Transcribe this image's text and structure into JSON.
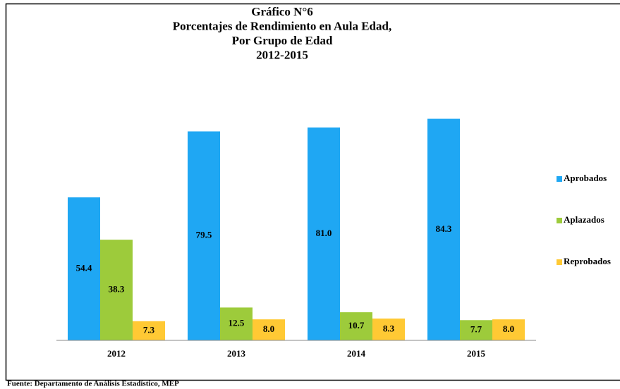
{
  "chart_data": {
    "type": "bar",
    "title": [
      "Gráfico N°6",
      "Porcentajes de Rendimiento en Aula Edad,",
      "Por Grupo de Edad",
      "2012-2015"
    ],
    "categories": [
      "2012",
      "2013",
      "2014",
      "2015"
    ],
    "series": [
      {
        "name": "Aprobados",
        "color": "#1fa7f3",
        "values": [
          54.4,
          79.5,
          81.0,
          84.3
        ],
        "value_labels": [
          "54.4",
          "79.5",
          "81.0",
          "84.3"
        ]
      },
      {
        "name": "Aplazados",
        "color": "#9dcb3b",
        "values": [
          38.3,
          12.5,
          10.7,
          7.7
        ],
        "value_labels": [
          "38.3",
          "12.5",
          "10.7",
          "7.7"
        ]
      },
      {
        "name": "Reprobados",
        "color": "#ffc934",
        "values": [
          7.3,
          8.0,
          8.3,
          8.0
        ],
        "value_labels": [
          "7.3",
          "8.0",
          "8.3",
          "8.0"
        ]
      }
    ],
    "legend": "right",
    "source": "Fuente: Departamento de Análisis Estadístico, MEP"
  }
}
